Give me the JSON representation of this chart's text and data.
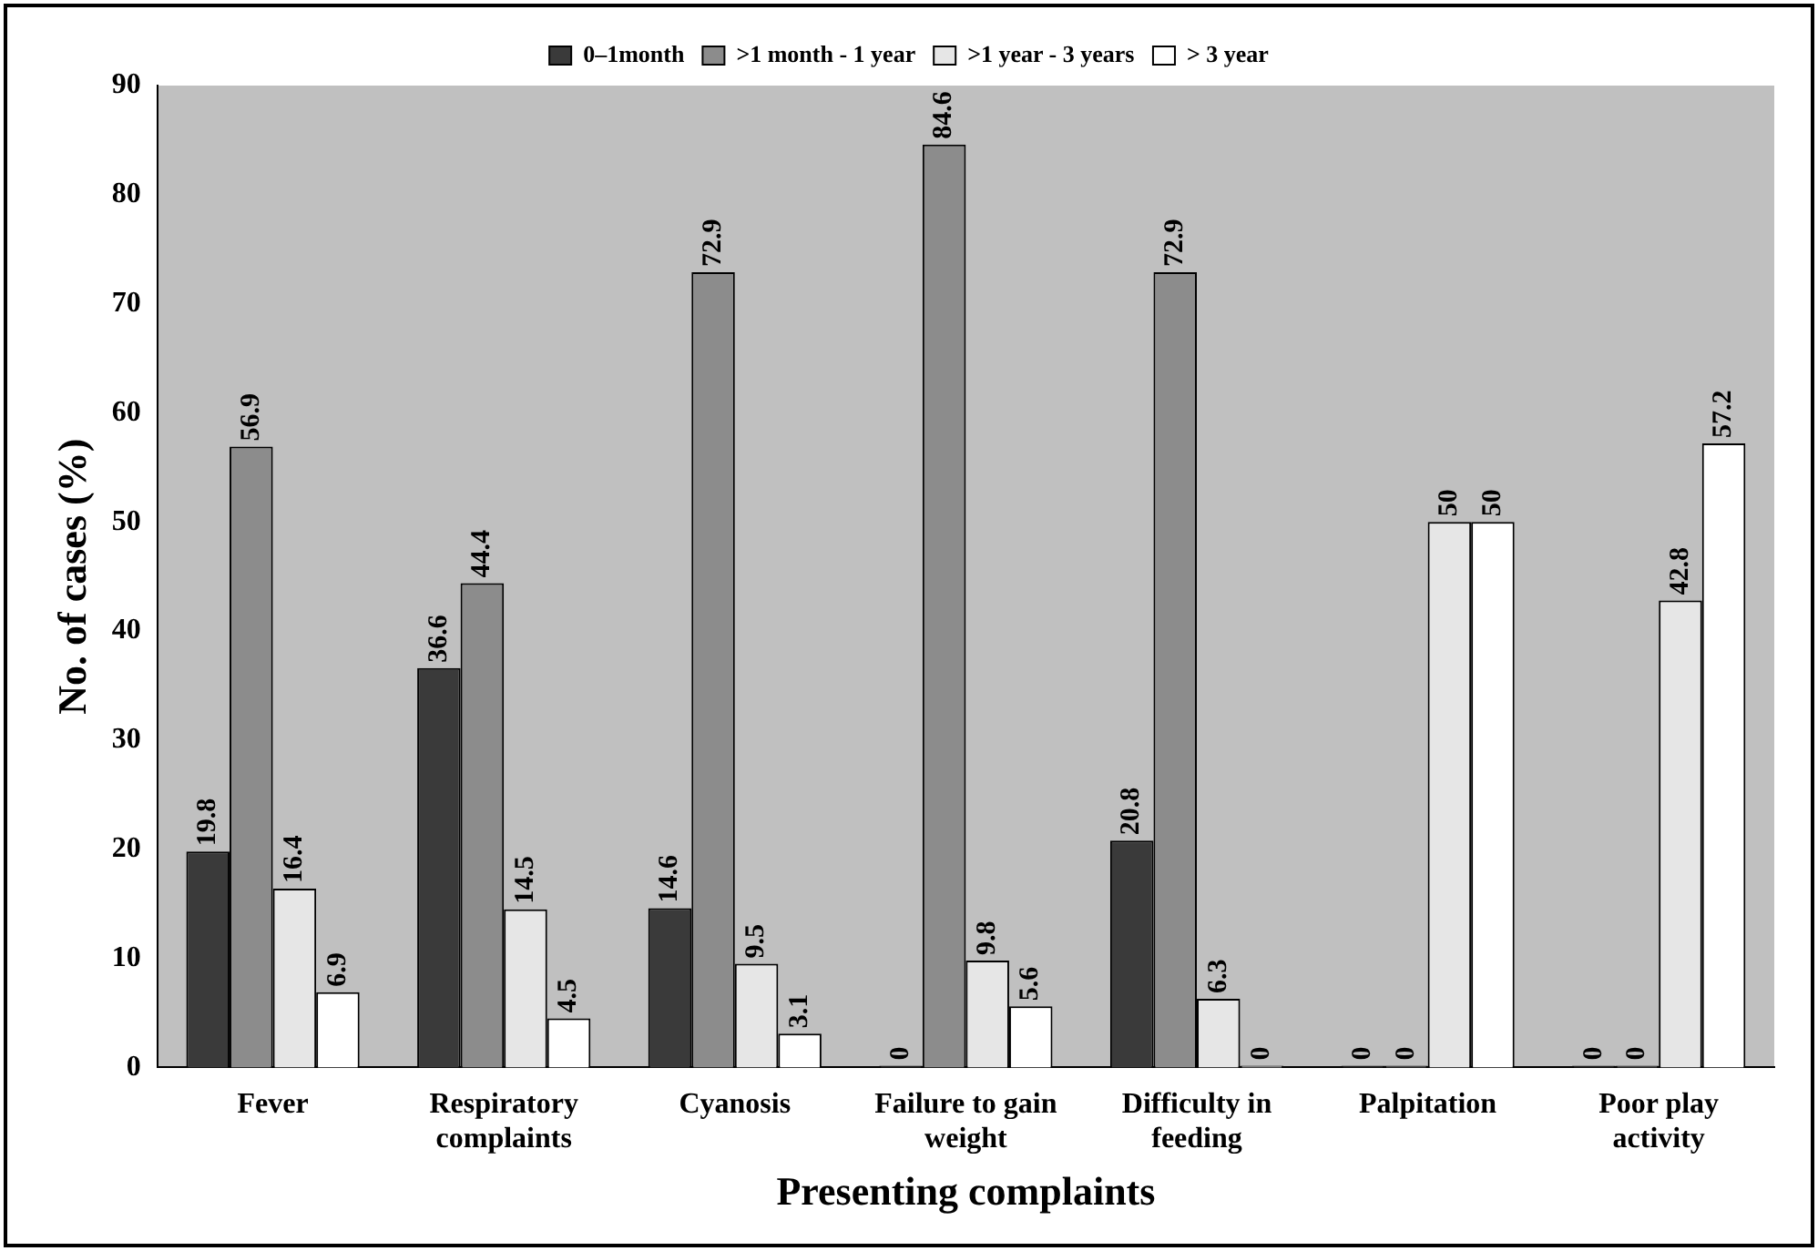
{
  "chart_data": {
    "type": "bar",
    "xlabel": "Presenting complaints",
    "ylabel": "No. of cases (%)",
    "categories": [
      "Fever",
      "Respiratory complaints",
      "Cyanosis",
      "Failure to gain weight",
      "Difficulty in feeding",
      "Palpitation",
      "Poor play activity"
    ],
    "series": [
      {
        "name": "0–1month",
        "color": "#3a3a3a",
        "values": [
          19.8,
          36.6,
          14.6,
          0,
          20.8,
          0,
          0
        ]
      },
      {
        "name": ">1 month - 1 year",
        "color": "#8c8c8c",
        "values": [
          56.9,
          44.4,
          72.9,
          84.6,
          72.9,
          0,
          0
        ]
      },
      {
        "name": ">1 year - 3 years",
        "color": "#e6e6e6",
        "values": [
          16.4,
          14.5,
          9.5,
          9.8,
          6.3,
          50,
          42.8
        ]
      },
      {
        "name": "> 3 year",
        "color": "#ffffff",
        "values": [
          6.9,
          4.5,
          3.1,
          5.6,
          0,
          50,
          57.2
        ]
      }
    ],
    "ylim": [
      0,
      90
    ],
    "yticks": [
      0,
      10,
      20,
      30,
      40,
      50,
      60,
      70,
      80,
      90
    ],
    "grid": false,
    "legend": "top",
    "data_labels": true
  }
}
